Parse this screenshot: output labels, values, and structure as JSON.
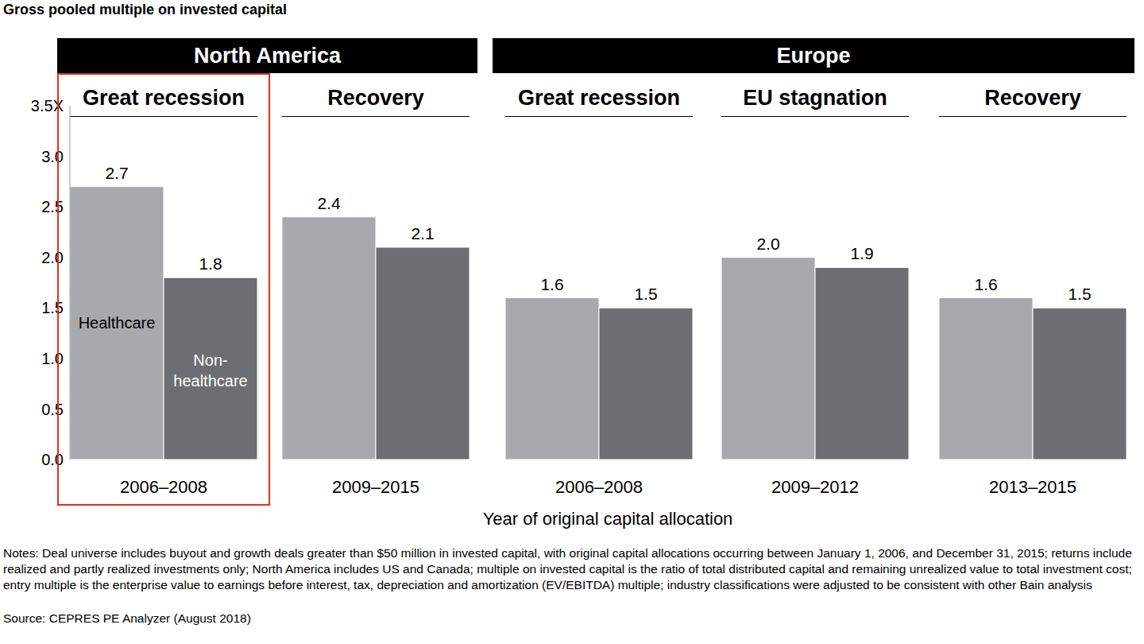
{
  "chart_data": {
    "type": "bar",
    "title": "Gross pooled multiple on invested capital",
    "x_label": "Year of original capital allocation",
    "categories": [
      "2006–2008",
      "2009–2015",
      "2006–2008",
      "2009–2012",
      "2013–2015"
    ],
    "periods": [
      "Great recession",
      "Recovery",
      "Great recession",
      "EU stagnation",
      "Recovery"
    ],
    "regions": [
      "North America",
      "North America",
      "Europe",
      "Europe",
      "Europe"
    ],
    "ylim": [
      0,
      3.5
    ],
    "yticks": [
      {
        "value": 0,
        "label": "0.0"
      },
      {
        "value": 0.5,
        "label": "0.5"
      },
      {
        "value": 1,
        "label": "1.0"
      },
      {
        "value": 1.5,
        "label": "1.5"
      },
      {
        "value": 2,
        "label": "2.0"
      },
      {
        "value": 2.5,
        "label": "2.5"
      },
      {
        "value": 3,
        "label": "3.0"
      },
      {
        "value": 3.5,
        "label": "3.5X"
      }
    ],
    "data_labels": true,
    "series": [
      {
        "name": "Healthcare",
        "color": "#a7a9ac",
        "values": [
          2.7,
          2.4,
          1.6,
          2.0,
          1.6
        ],
        "value_labels": [
          "2.7",
          "2.4",
          "1.6",
          "2.0",
          "1.6"
        ]
      },
      {
        "name": "Non-healthcare",
        "color": "#6d6e71",
        "values": [
          1.8,
          2.1,
          1.5,
          1.9,
          1.5
        ],
        "value_labels": [
          "1.8",
          "2.1",
          "1.5",
          "1.9",
          "1.5"
        ]
      }
    ],
    "notes": "Notes: Deal universe includes buyout and growth deals greater than $50 million in invested capital, with original capital allocations occurring between January 1, 2006, and December 31, 2015; returns include realized and partly realized investments only; North America includes US and Canada; multiple on invested capital is the ratio of total distributed capital and remaining unrealized value to total investment cost; entry multiple is the enterprise value to earnings before interest, tax, depreciation and amortization (EV/EBITDA) multiple; industry classifications were adjusted to be consistent with other Bain analysis",
    "source": "Source: CEPRES PE Analyzer (August 2018)"
  }
}
